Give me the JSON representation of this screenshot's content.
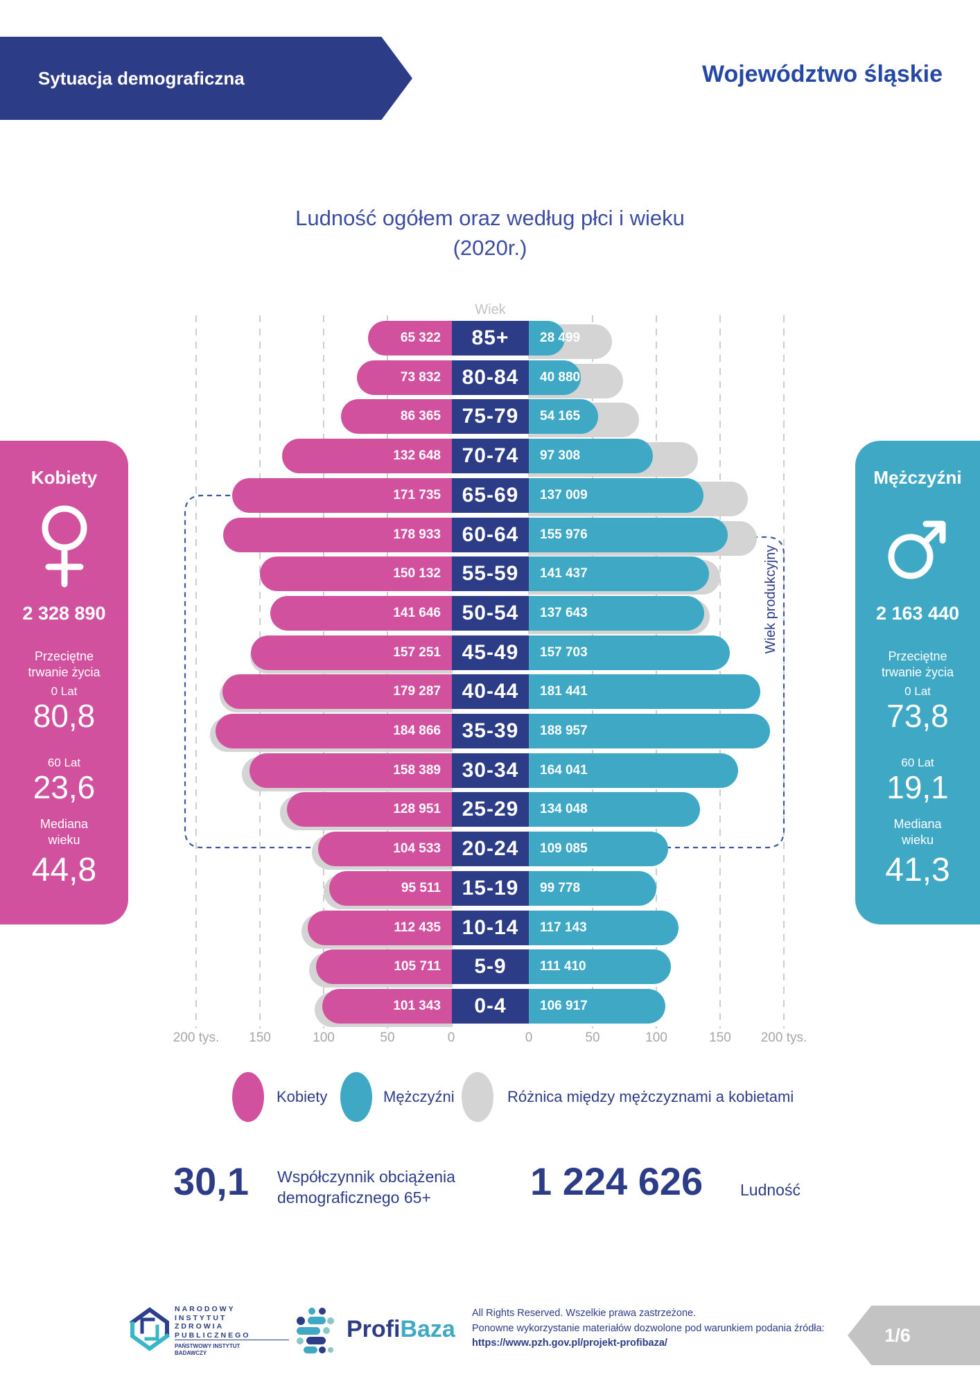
{
  "header": {
    "banner": "Sytuacja demograficzna",
    "region": "Województwo śląskie"
  },
  "title": {
    "line1": "Ludność ogółem oraz według płci i wieku",
    "line2": "(2020r.)"
  },
  "chart_data": {
    "type": "bar",
    "subtype": "population-pyramid",
    "title": "Ludność ogółem oraz według płci i wieku (2020r.)",
    "center_axis_label": "Wiek",
    "annotation": "Wiek produkcyjny",
    "categories": [
      "85+",
      "80-84",
      "75-79",
      "70-74",
      "65-69",
      "60-64",
      "55-59",
      "50-54",
      "45-49",
      "40-44",
      "35-39",
      "30-34",
      "25-29",
      "20-24",
      "15-19",
      "10-14",
      "5-9",
      "0-4"
    ],
    "series": [
      {
        "name": "Kobiety",
        "values": [
          65322,
          73832,
          86365,
          132648,
          171735,
          178933,
          150132,
          141646,
          157251,
          179287,
          184866,
          158389,
          128951,
          104533,
          95511,
          112435,
          105711,
          101343
        ]
      },
      {
        "name": "Mężczyźni",
        "values": [
          28499,
          40880,
          54165,
          97308,
          137009,
          155976,
          141437,
          137643,
          157703,
          181441,
          188957,
          164041,
          134048,
          109085,
          99778,
          117143,
          111410,
          106917
        ]
      }
    ],
    "value_labels": {
      "female": [
        "65 322",
        "73 832",
        "86 365",
        "132 648",
        "171 735",
        "178 933",
        "150 132",
        "141 646",
        "157 251",
        "179 287",
        "184 866",
        "158 389",
        "128 951",
        "104 533",
        "95 511",
        "112 435",
        "105 711",
        "101 343"
      ],
      "male": [
        "28 499",
        "40 880",
        "54 165",
        "97 308",
        "137 009",
        "155 976",
        "141 437",
        "137 643",
        "157 703",
        "181 441",
        "188 957",
        "164 041",
        "134 048",
        "109 085",
        "99 778",
        "117 143",
        "111 410",
        "106 917"
      ]
    },
    "x_axis": {
      "left_ticks": [
        "200 tys.",
        "150",
        "100",
        "50",
        "0"
      ],
      "right_ticks": [
        "0",
        "50",
        "100",
        "150",
        "200 tys."
      ],
      "max": 200000,
      "grid": "dashed"
    },
    "legend": [
      {
        "label": "Kobiety",
        "color": "#d2519f"
      },
      {
        "label": "Mężczyźni",
        "color": "#3fa8c5"
      },
      {
        "label": "Różnica między mężczyznami a kobietami",
        "color": "#d4d4d4"
      }
    ]
  },
  "panels": {
    "female": {
      "title": "Kobiety",
      "total": "2 328 890",
      "life_label": "Przeciętne trwanie życia",
      "age0_label": "0 Lat",
      "age0_value": "80,8",
      "age60_label": "60 Lat",
      "age60_value": "23,6",
      "median_label": "Mediana wieku",
      "median_value": "44,8",
      "color": "#d2519f"
    },
    "male": {
      "title": "Mężczyźni",
      "total": "2 163 440",
      "life_label": "Przeciętne trwanie życia",
      "age0_label": "0 Lat",
      "age0_value": "73,8",
      "age60_label": "60 Lat",
      "age60_value": "19,1",
      "median_label": "Mediana wieku",
      "median_value": "41,3",
      "color": "#3fa8c5"
    }
  },
  "stats": {
    "dependency_value": "30,1",
    "dependency_label_line1": "Współczynnik obciążenia",
    "dependency_label_line2": "demograficznego 65+",
    "population_value": "1 224 626",
    "population_label": "Ludność"
  },
  "footer": {
    "institute_lines": [
      "NARODOWY",
      "INSTYTUT",
      "ZDROWIA",
      "PUBLICZNEGO"
    ],
    "institute_sub_line1": "PAŃSTWOWY INSTYTUT",
    "institute_sub_line2": "BADAWCZY",
    "brand_part1": "Profi",
    "brand_part2": "Baza",
    "rights_line1": "All Rights Reserved. Wszelkie prawa zastrzeżone.",
    "rights_line2": "Ponowne wykorzystanie materiałów dozwolone pod warunkiem podania źródła:",
    "rights_link": "https://www.pzh.gov.pl/projekt-profibaza/",
    "page": "1/6"
  }
}
